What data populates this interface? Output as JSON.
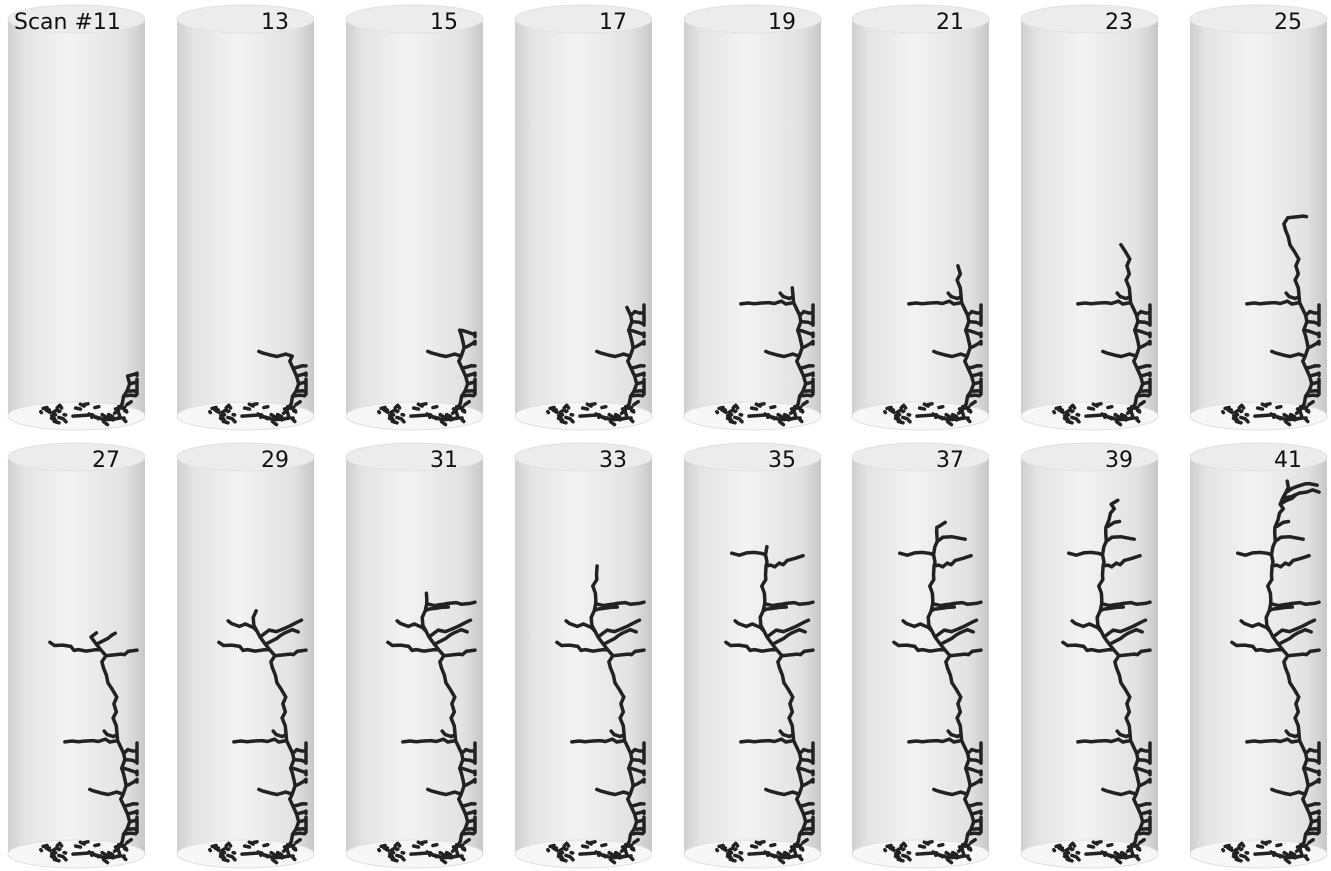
{
  "panels": [
    {
      "label": "Scan #11"
    },
    {
      "label": "13"
    },
    {
      "label": "15"
    },
    {
      "label": "17"
    },
    {
      "label": "19"
    },
    {
      "label": "21"
    },
    {
      "label": "23"
    },
    {
      "label": "25"
    },
    {
      "label": "27"
    },
    {
      "label": "29"
    },
    {
      "label": "31"
    },
    {
      "label": "33"
    },
    {
      "label": "35"
    },
    {
      "label": "37"
    },
    {
      "label": "39"
    },
    {
      "label": "41"
    }
  ]
}
